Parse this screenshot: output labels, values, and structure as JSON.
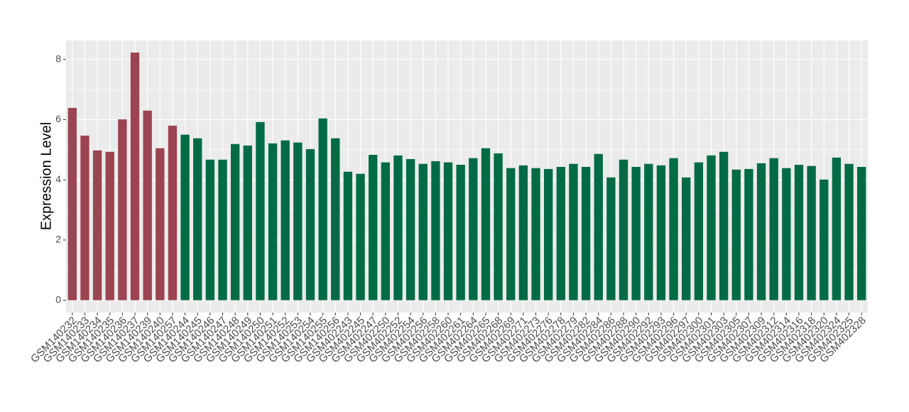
{
  "chart_data": {
    "type": "bar",
    "y_label": "Expression Level",
    "categories": [
      "GSM140232",
      "GSM140233",
      "GSM140234",
      "GSM140235",
      "GSM140236",
      "GSM140237",
      "GSM140239",
      "GSM140240",
      "GSM140257",
      "GSM140244",
      "GSM140245",
      "GSM140246",
      "GSM140247",
      "GSM140248",
      "GSM140249",
      "GSM140250",
      "GSM140251",
      "GSM140252",
      "GSM140253",
      "GSM140254",
      "GSM140255",
      "GSM140256",
      "GSM402243",
      "GSM402245",
      "GSM402247",
      "GSM402250",
      "GSM402252",
      "GSM402254",
      "GSM402256",
      "GSM402258",
      "GSM402260",
      "GSM402261",
      "GSM402264",
      "GSM402265",
      "GSM402268",
      "GSM402269",
      "GSM402271",
      "GSM402273",
      "GSM402276",
      "GSM402278",
      "GSM402279",
      "GSM402282",
      "GSM402284",
      "GSM402286",
      "GSM402288",
      "GSM402290",
      "GSM402292",
      "GSM402293",
      "GSM402296",
      "GSM402297",
      "GSM402300",
      "GSM402301",
      "GSM402303",
      "GSM402305",
      "GSM402307",
      "GSM402309",
      "GSM402312",
      "GSM402314",
      "GSM402316",
      "GSM402318",
      "GSM402320",
      "GSM402324",
      "GSM402325",
      "GSM402328"
    ],
    "values": [
      6.39,
      5.47,
      4.98,
      4.93,
      6.01,
      8.23,
      6.3,
      5.05,
      5.8,
      5.5,
      5.38,
      4.67,
      4.67,
      5.19,
      5.14,
      5.92,
      5.21,
      5.31,
      5.24,
      5.02,
      6.04,
      5.38,
      4.27,
      4.2,
      4.83,
      4.58,
      4.81,
      4.69,
      4.53,
      4.62,
      4.58,
      4.5,
      4.72,
      5.05,
      4.88,
      4.39,
      4.48,
      4.39,
      4.36,
      4.43,
      4.53,
      4.43,
      4.86,
      4.08,
      4.67,
      4.43,
      4.53,
      4.48,
      4.72,
      4.08,
      4.58,
      4.81,
      4.93,
      4.34,
      4.36,
      4.55,
      4.72,
      4.39,
      4.5,
      4.46,
      4.01,
      4.74,
      4.53,
      4.43
    ],
    "colors": [
      "#9c4451",
      "#9c4451",
      "#9c4451",
      "#9c4451",
      "#9c4451",
      "#9c4451",
      "#9c4451",
      "#9c4451",
      "#9c4451",
      "#006b45",
      "#006b45",
      "#006b45",
      "#006b45",
      "#006b45",
      "#006b45",
      "#006b45",
      "#006b45",
      "#006b45",
      "#006b45",
      "#006b45",
      "#006b45",
      "#006b45",
      "#006b45",
      "#006b45",
      "#006b45",
      "#006b45",
      "#006b45",
      "#006b45",
      "#006b45",
      "#006b45",
      "#006b45",
      "#006b45",
      "#006b45",
      "#006b45",
      "#006b45",
      "#006b45",
      "#006b45",
      "#006b45",
      "#006b45",
      "#006b45",
      "#006b45",
      "#006b45",
      "#006b45",
      "#006b45",
      "#006b45",
      "#006b45",
      "#006b45",
      "#006b45",
      "#006b45",
      "#006b45",
      "#006b45",
      "#006b45",
      "#006b45",
      "#006b45",
      "#006b45",
      "#006b45",
      "#006b45",
      "#006b45",
      "#006b45",
      "#006b45",
      "#006b45",
      "#006b45",
      "#006b45",
      "#006b45"
    ],
    "ylim": [
      -0.41,
      8.63
    ],
    "yticks": [
      0,
      2,
      4,
      6,
      8
    ],
    "minor_yticks": [
      1,
      3,
      5,
      7
    ],
    "grid": true
  }
}
